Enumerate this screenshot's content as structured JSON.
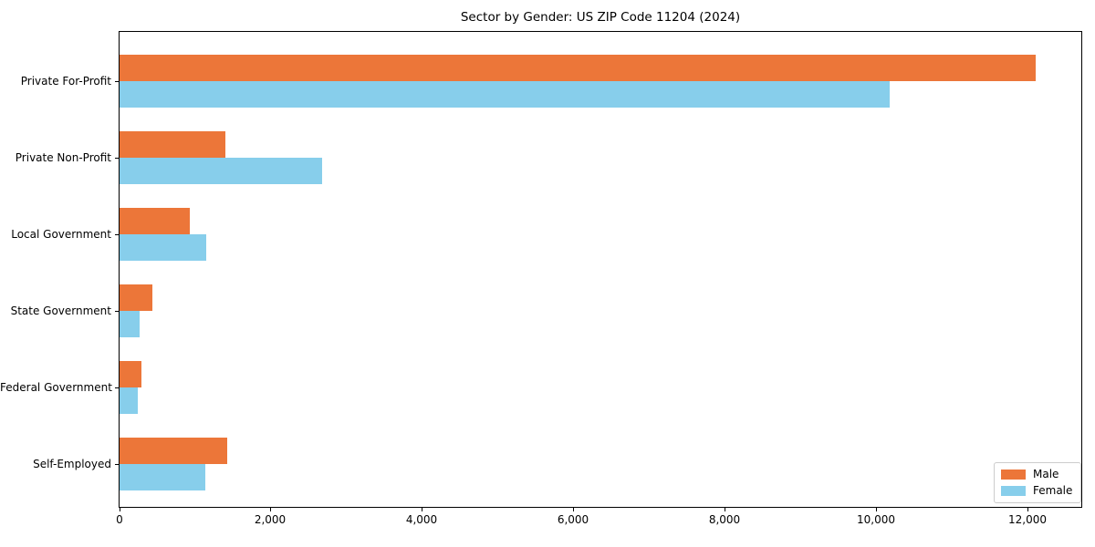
{
  "chart_data": {
    "type": "bar",
    "orientation": "horizontal",
    "title": "Sector by Gender: US ZIP Code 11204 (2024)",
    "categories": [
      "Private For-Profit",
      "Private Non-Profit",
      "Local Government",
      "State Government",
      "Federal Government",
      "Self-Employed"
    ],
    "series": [
      {
        "name": "Male",
        "color": "#ec7639",
        "values": [
          12100,
          1400,
          930,
          430,
          290,
          1420
        ]
      },
      {
        "name": "Female",
        "color": "#87ceeb",
        "values": [
          10170,
          2670,
          1150,
          270,
          240,
          1130
        ]
      }
    ],
    "xlabel": "",
    "ylabel": "",
    "xlim": [
      0,
      12705
    ],
    "x_ticks": [
      {
        "value": 0,
        "label": "0"
      },
      {
        "value": 2000,
        "label": "2,000"
      },
      {
        "value": 4000,
        "label": "4,000"
      },
      {
        "value": 6000,
        "label": "6,000"
      },
      {
        "value": 8000,
        "label": "8,000"
      },
      {
        "value": 10000,
        "label": "10,000"
      },
      {
        "value": 12000,
        "label": "12,000"
      }
    ],
    "grid": false,
    "legend": {
      "position": "lower-right",
      "entries": [
        "Male",
        "Female"
      ]
    }
  }
}
